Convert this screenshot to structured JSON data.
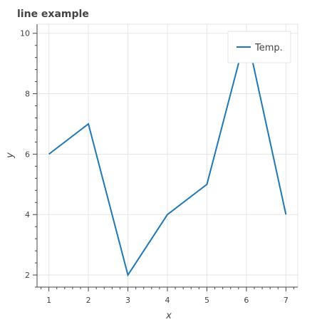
{
  "chart_data": {
    "type": "line",
    "title": "line example",
    "xlabel": "x",
    "ylabel": "y",
    "x": [
      1,
      2,
      3,
      4,
      5,
      6,
      7
    ],
    "series": [
      {
        "name": "Temp.",
        "values": [
          6,
          7,
          2,
          4,
          5,
          10,
          4
        ],
        "color": "#1f77b4"
      }
    ],
    "xlim": [
      0.7,
      7.3
    ],
    "ylim": [
      1.6,
      10.3
    ],
    "xticks": [
      "1",
      "2",
      "3",
      "4",
      "5",
      "6",
      "7"
    ],
    "yticks": [
      "2",
      "4",
      "6",
      "8",
      "10"
    ],
    "grid": true,
    "legend_position": "top-right"
  }
}
